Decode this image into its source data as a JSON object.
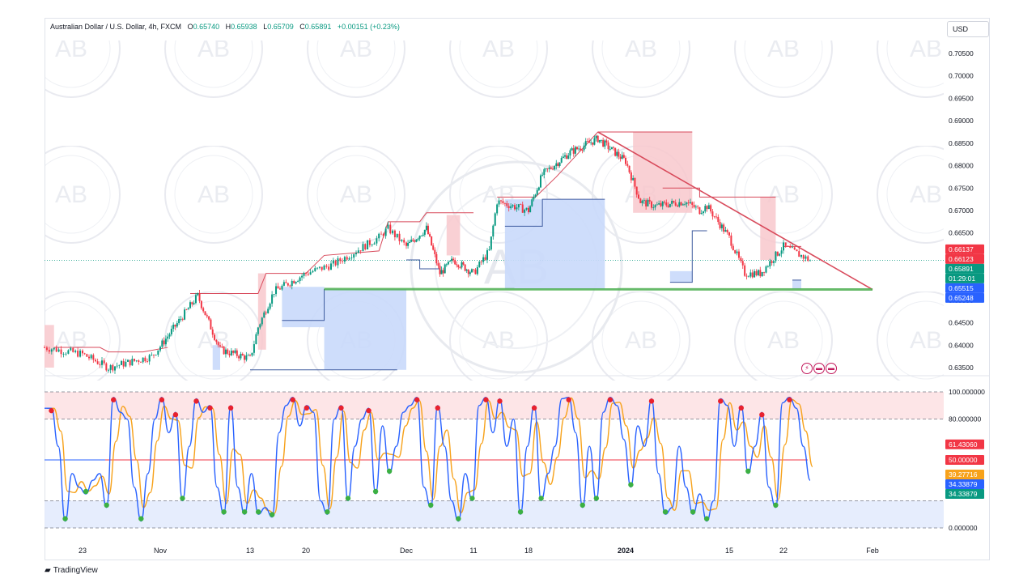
{
  "header": {
    "symbol": "Australian Dollar / U.S. Dollar, 4h, FXCM",
    "open_label": "O",
    "open": "0.65740",
    "high_label": "H",
    "high": "0.65938",
    "low_label": "L",
    "low": "0.65709",
    "close_label": "C",
    "close": "0.65891",
    "change": "+0.00151 (+0.23%)"
  },
  "currency_button": "USD",
  "branding": {
    "name": "TradingView"
  },
  "event_icons": [
    "lightning-icon",
    "flag-icon",
    "flag-icon"
  ],
  "colors": {
    "up": "#089981",
    "down": "#f23645",
    "trendline": "#d84a5b",
    "support": "#4caf50",
    "supply_zone": "#f8c8cc",
    "demand_zone": "#c9d9fb",
    "k_line": "#2962ff",
    "d_line": "#f7a21b"
  },
  "chart_data": [
    {
      "type": "line",
      "subtype": "candlestick",
      "price_ylim": [
        0.6335,
        0.7075
      ],
      "y_tick_labels": [
        "0.70500",
        "0.70000",
        "0.69500",
        "0.69000",
        "0.68500",
        "0.68000",
        "0.67500",
        "0.67000",
        "0.66500",
        "0.66000",
        "0.65500",
        "0.65000",
        "0.64500",
        "0.64000",
        "0.63500"
      ],
      "x_tick_labels": [
        "23",
        "Nov",
        "13",
        "20",
        "Dec",
        "11",
        "18",
        "2024",
        "15",
        "22",
        "Feb"
      ],
      "price_path": [
        [
          "Oct 19",
          0.6395
        ],
        [
          "Oct 23",
          0.638
        ],
        [
          "Oct 26",
          0.635
        ],
        [
          "Oct 31",
          0.6375
        ],
        [
          "Nov 2",
          0.642
        ],
        [
          "Nov 6",
          0.651
        ],
        [
          "Nov 9",
          0.639
        ],
        [
          "Nov 13",
          0.637
        ],
        [
          "Nov 14",
          0.644
        ],
        [
          "Nov 16",
          0.652
        ],
        [
          "Nov 20",
          0.656
        ],
        [
          "Nov 23",
          0.658
        ],
        [
          "Nov 28",
          0.664
        ],
        [
          "Nov 29",
          0.666
        ],
        [
          "Dec 1",
          0.662
        ],
        [
          "Dec 4",
          0.666
        ],
        [
          "Dec 6",
          0.656
        ],
        [
          "Dec 8",
          0.659
        ],
        [
          "Dec 11",
          0.656
        ],
        [
          "Dec 13",
          0.661
        ],
        [
          "Dec 14",
          0.672
        ],
        [
          "Dec 18",
          0.67
        ],
        [
          "Dec 20",
          0.678
        ],
        [
          "Dec 24",
          0.683
        ],
        [
          "Dec 28",
          0.686
        ],
        [
          "Jan 1",
          0.681
        ],
        [
          "Jan 3",
          0.672
        ],
        [
          "Jan 5",
          0.671
        ],
        [
          "Jan 9",
          0.672
        ],
        [
          "Jan 11",
          0.67
        ],
        [
          "Jan 12",
          0.671
        ],
        [
          "Jan 15",
          0.664
        ],
        [
          "Jan 17",
          0.656
        ],
        [
          "Jan 19",
          0.656
        ],
        [
          "Jan 22",
          0.662
        ],
        [
          "Jan 25",
          0.6589
        ]
      ],
      "price_labels": [
        {
          "text": "0.66137",
          "value": 0.66137,
          "color": "#f23645"
        },
        {
          "text": "0.66123",
          "value": 0.66123,
          "color": "#f23645"
        },
        {
          "text": "0.65891",
          "value": 0.65891,
          "color": "#089981"
        },
        {
          "text": "01:29:01",
          "value": 0.6576,
          "color": "#089981"
        },
        {
          "text": "0.65515",
          "value": 0.65515,
          "color": "#2962ff"
        },
        {
          "text": "0.65248",
          "value": 0.65248,
          "color": "#2962ff"
        }
      ],
      "trendline": [
        [
          "Dec 28",
          0.6875
        ],
        [
          "Feb 1",
          0.6524
        ]
      ],
      "support_line": [
        [
          "Nov 22",
          0.6525
        ],
        [
          "Feb 1",
          0.6524
        ]
      ],
      "supply_zones": [
        {
          "from": "Oct 19",
          "to": "Oct 20",
          "low": 0.635,
          "high": 0.6445
        },
        {
          "from": "Nov 14",
          "to": "Nov 15",
          "low": 0.639,
          "high": 0.656
        },
        {
          "from": "Dec 7",
          "to": "Dec 9",
          "low": 0.66,
          "high": 0.669
        },
        {
          "from": "Jan 2",
          "to": "Jan 10",
          "low": 0.6695,
          "high": 0.6875
        },
        {
          "from": "Jan 19",
          "to": "Jan 21",
          "low": 0.659,
          "high": 0.673
        }
      ],
      "demand_zones": [
        {
          "from": "Nov 8",
          "to": "Nov 9",
          "low": 0.6345,
          "high": 0.64
        },
        {
          "from": "Nov 17",
          "to": "Nov 22",
          "low": 0.644,
          "high": 0.653
        },
        {
          "from": "Nov 22",
          "to": "Dec 1",
          "low": 0.6345,
          "high": 0.6525
        },
        {
          "from": "Dec 15",
          "to": "Dec 29",
          "low": 0.6525,
          "high": 0.6725
        },
        {
          "from": "Jan 7",
          "to": "Jan 10",
          "low": 0.654,
          "high": 0.6565
        },
        {
          "from": "Jan 23",
          "to": "Jan 24",
          "low": 0.6525,
          "high": 0.6545
        }
      ]
    },
    {
      "type": "line",
      "subtype": "stochastic-rsi",
      "ylim": [
        0,
        100
      ],
      "y_tick_labels": [
        "100.000000",
        "80.000000",
        "0.000000"
      ],
      "levels": [
        100,
        80,
        50,
        20,
        0
      ],
      "value_labels": [
        {
          "text": "61.43060",
          "value": 61.4306,
          "color": "#f23645"
        },
        {
          "text": "50.00000",
          "value": 50.0,
          "color": "#f23645"
        },
        {
          "text": "39.27716",
          "value": 39.27716,
          "color": "#f7a21b"
        },
        {
          "text": "34.33879",
          "value": 34.33879,
          "color": "#2962ff"
        },
        {
          "text": "34.33879",
          "value": 34.33879,
          "color": "#089981"
        }
      ],
      "series": [
        {
          "values": [
            88,
            88,
            60,
            5,
            40,
            30,
            25,
            35,
            40,
            15,
            96,
            85,
            80,
            30,
            5,
            40,
            80,
            96,
            70,
            85,
            20,
            60,
            95,
            85,
            90,
            30,
            10,
            90,
            30,
            10,
            40,
            10,
            15,
            8,
            70,
            90,
            96,
            75,
            90,
            85,
            20,
            10,
            80,
            90,
            20,
            60,
            80,
            88,
            25,
            75,
            40,
            60,
            85,
            90,
            96,
            30,
            15,
            90,
            60,
            20,
            5,
            40,
            20,
            90,
            96,
            70,
            95,
            60,
            80,
            10,
            60,
            90,
            20,
            40,
            60,
            95,
            96,
            70,
            15,
            60,
            20,
            85,
            96,
            90,
            65,
            30,
            75,
            60,
            95,
            40,
            10,
            15,
            60,
            30,
            10,
            25,
            5,
            20,
            95,
            90,
            60,
            90,
            40,
            60,
            85,
            30,
            15,
            92,
            96,
            88,
            60,
            35
          ],
          "x_start": "Oct 19",
          "x_end": "Jan 25"
        }
      ]
    }
  ]
}
